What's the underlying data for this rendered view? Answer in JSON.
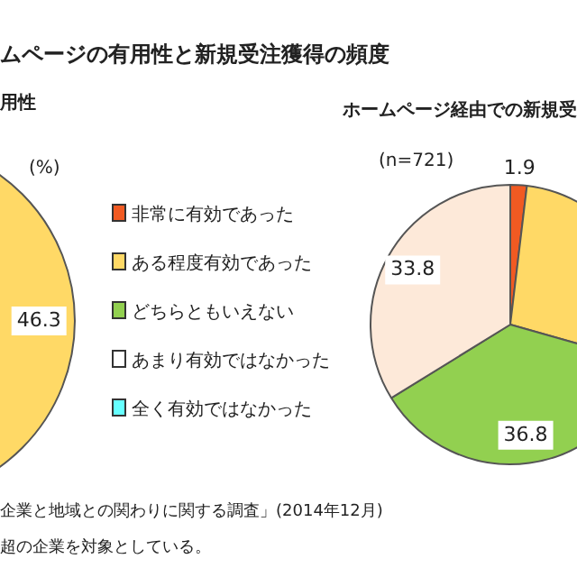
{
  "chart_data": [
    {
      "type": "pie",
      "title": "ムページの有用性と新規受注獲得の頻度",
      "subtitle": "用性",
      "annotations": [
        "(%)",
        "企業と地域との関わりに関する調査」(2014年12月)",
        "超の企業を対象としている。"
      ],
      "categories": [
        "非常に有効であった",
        "ある程度有効であった",
        "どちらともいえない",
        "あまり有効ではなかった",
        "全く有効ではなかった"
      ],
      "values": [
        null,
        46.3,
        null,
        null,
        null
      ],
      "colors": [
        "#f15a22",
        "#ffd966",
        "#92d050",
        "#ffffff",
        "#66ffff"
      ],
      "value_labels": [
        null,
        "46.3",
        null,
        null,
        null
      ],
      "legend": "right"
    },
    {
      "type": "pie",
      "subtitle": "ホームページ経由での新規受",
      "annotations": [
        "(n=721)"
      ],
      "categories": [
        null,
        null,
        null,
        null
      ],
      "values": [
        1.9,
        27.5,
        36.8,
        33.8
      ],
      "colors": [
        "#f15a22",
        "#ffd966",
        "#92d050",
        "#fde9d9"
      ],
      "value_labels": [
        "1.9",
        null,
        "36.8",
        "33.8"
      ]
    }
  ]
}
